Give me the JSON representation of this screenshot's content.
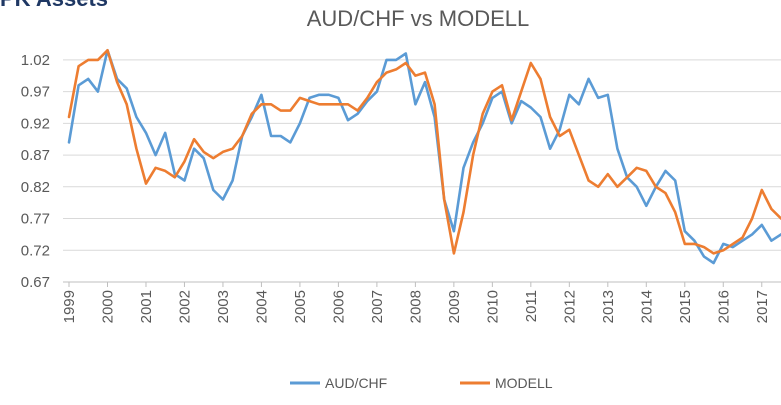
{
  "brand": "PK Assets",
  "chart_data": {
    "type": "line",
    "title": "AUD/CHF vs MODELL",
    "x": [
      1999,
      1999.25,
      1999.5,
      1999.75,
      2000,
      2000.25,
      2000.5,
      2000.75,
      2001,
      2001.25,
      2001.5,
      2001.75,
      2002,
      2002.25,
      2002.5,
      2002.75,
      2003,
      2003.25,
      2003.5,
      2003.75,
      2004,
      2004.25,
      2004.5,
      2004.75,
      2005,
      2005.25,
      2005.5,
      2005.75,
      2006,
      2006.25,
      2006.5,
      2006.75,
      2007,
      2007.25,
      2007.5,
      2007.75,
      2008,
      2008.25,
      2008.5,
      2008.75,
      2009,
      2009.25,
      2009.5,
      2009.75,
      2010,
      2010.25,
      2010.5,
      2010.75,
      2011,
      2011.25,
      2011.5,
      2011.75,
      2012,
      2012.25,
      2012.5,
      2012.75,
      2013,
      2013.25,
      2013.5,
      2013.75,
      2014,
      2014.25,
      2014.5,
      2014.75,
      2015,
      2015.25,
      2015.5,
      2015.75,
      2016,
      2016.25,
      2016.5,
      2016.75,
      2017,
      2017.25,
      2017.5
    ],
    "series": [
      {
        "name": "AUD/CHF",
        "color": "#5b9bd5",
        "values": [
          0.89,
          0.98,
          0.99,
          0.97,
          1.035,
          0.99,
          0.975,
          0.93,
          0.905,
          0.87,
          0.905,
          0.84,
          0.83,
          0.88,
          0.865,
          0.815,
          0.8,
          0.83,
          0.9,
          0.93,
          0.965,
          0.9,
          0.9,
          0.89,
          0.92,
          0.96,
          0.965,
          0.965,
          0.96,
          0.925,
          0.935,
          0.955,
          0.97,
          1.02,
          1.02,
          1.03,
          0.95,
          0.985,
          0.93,
          0.8,
          0.75,
          0.85,
          0.89,
          0.92,
          0.96,
          0.97,
          0.92,
          0.955,
          0.945,
          0.93,
          0.88,
          0.91,
          0.965,
          0.95,
          0.99,
          0.96,
          0.965,
          0.88,
          0.835,
          0.82,
          0.79,
          0.82,
          0.845,
          0.83,
          0.75,
          0.735,
          0.71,
          0.7,
          0.73,
          0.725,
          0.735,
          0.745,
          0.76,
          0.735,
          0.745
        ]
      },
      {
        "name": "MODELL",
        "color": "#ed7d31",
        "values": [
          0.93,
          1.01,
          1.02,
          1.02,
          1.035,
          0.985,
          0.95,
          0.88,
          0.825,
          0.85,
          0.845,
          0.835,
          0.86,
          0.895,
          0.875,
          0.865,
          0.875,
          0.88,
          0.9,
          0.935,
          0.95,
          0.95,
          0.94,
          0.94,
          0.96,
          0.955,
          0.95,
          0.95,
          0.95,
          0.95,
          0.94,
          0.96,
          0.985,
          1.0,
          1.005,
          1.015,
          0.995,
          1.0,
          0.95,
          0.8,
          0.715,
          0.78,
          0.87,
          0.935,
          0.97,
          0.98,
          0.925,
          0.97,
          1.015,
          0.99,
          0.93,
          0.9,
          0.91,
          0.87,
          0.83,
          0.82,
          0.84,
          0.82,
          0.835,
          0.85,
          0.845,
          0.82,
          0.81,
          0.78,
          0.73,
          0.73,
          0.725,
          0.715,
          0.72,
          0.73,
          0.74,
          0.77,
          0.815,
          0.785,
          0.77
        ]
      }
    ],
    "xlim": [
      1999,
      2017.5
    ],
    "xticks": [
      1999,
      2000,
      2001,
      2002,
      2003,
      2004,
      2005,
      2006,
      2007,
      2008,
      2009,
      2010,
      2011,
      2012,
      2013,
      2014,
      2015,
      2016,
      2017
    ],
    "ylim": [
      0.67,
      1.045
    ],
    "yticks": [
      0.67,
      0.72,
      0.77,
      0.82,
      0.87,
      0.92,
      0.97,
      1.02
    ],
    "grid": true,
    "legend": "bottom"
  }
}
